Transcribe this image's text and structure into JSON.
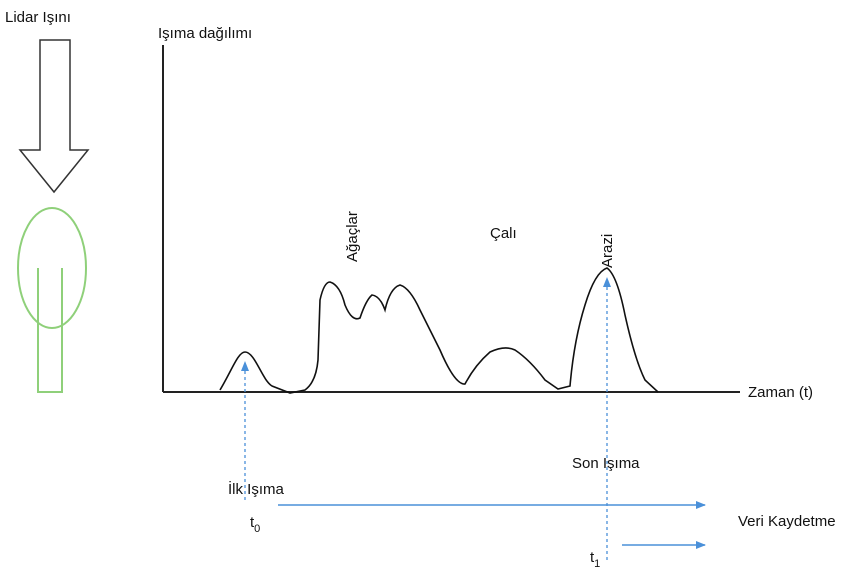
{
  "lidar_beam": {
    "label": "Lidar Işını"
  },
  "y_axis": {
    "label": "Işıma dağılımı"
  },
  "x_axis": {
    "label": "Zaman (t)"
  },
  "peaks": [
    {
      "label": "Ağaçlar"
    },
    {
      "label": "Çalı"
    },
    {
      "label": "Arazi"
    }
  ],
  "first_return": {
    "label": "İlk Işıma",
    "time": {
      "base": "t",
      "sub": "0"
    }
  },
  "last_return": {
    "label": "Son Işıma",
    "time": {
      "base": "t",
      "sub": "1"
    }
  },
  "recording": {
    "label": "Veri Kaydetme"
  }
}
